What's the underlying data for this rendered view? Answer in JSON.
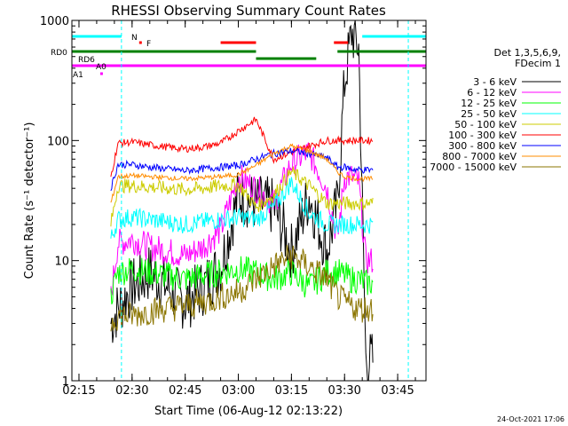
{
  "chart_data": {
    "type": "line",
    "title": "RHESSI Observing Summary Count Rates",
    "xlabel": "Start Time (06-Aug-12 02:13:22)",
    "ylabel": "Count Rate (s⁻¹ detector⁻¹)",
    "y_scale": "log",
    "ylim": [
      1,
      1000
    ],
    "xlim": [
      "02:13",
      "03:53"
    ],
    "x_ticks": [
      "02:15",
      "02:30",
      "02:45",
      "03:00",
      "03:15",
      "03:30",
      "03:45"
    ],
    "y_ticks": [
      "1",
      "10",
      "100",
      "1000"
    ],
    "legend_header": [
      "Det 1,3,5,6,9,",
      "FDecim 1"
    ],
    "legend_position": "right",
    "timestamp": "24-Oct-2021 17:06",
    "data_start": "02:24",
    "data_end": "03:39",
    "series": [
      {
        "name": "3 - 6 keV",
        "color": "#000000",
        "x": [
          "02:24",
          "02:26",
          "02:30",
          "02:35",
          "02:40",
          "02:45",
          "02:50",
          "02:55",
          "03:00",
          "03:05",
          "03:10",
          "03:15",
          "03:20",
          "03:25",
          "03:28",
          "03:30",
          "03:32",
          "03:34",
          "03:36",
          "03:38"
        ],
        "values": [
          3,
          4,
          6,
          8,
          6,
          4.5,
          6,
          9,
          35,
          30,
          28,
          12,
          35,
          12,
          30,
          300,
          800,
          600,
          1.5,
          1.5
        ]
      },
      {
        "name": "6 - 12 keV",
        "color": "#ff00ff",
        "x": [
          "02:24",
          "02:26",
          "02:30",
          "02:35",
          "02:40",
          "02:45",
          "02:50",
          "02:55",
          "03:00",
          "03:05",
          "03:10",
          "03:15",
          "03:20",
          "03:25",
          "03:28",
          "03:30",
          "03:32",
          "03:34",
          "03:36",
          "03:38"
        ],
        "values": [
          5,
          14,
          15,
          13,
          12,
          11,
          13,
          18,
          50,
          40,
          30,
          65,
          80,
          40,
          15,
          50,
          50,
          45,
          10,
          10
        ]
      },
      {
        "name": "12 - 25 keV",
        "color": "#00ff00",
        "x": [
          "02:24",
          "02:26",
          "02:30",
          "02:35",
          "02:40",
          "02:45",
          "02:50",
          "02:55",
          "03:00",
          "03:05",
          "03:10",
          "03:15",
          "03:20",
          "03:25",
          "03:28",
          "03:30",
          "03:32",
          "03:34",
          "03:36",
          "03:38"
        ],
        "values": [
          5,
          8,
          8.5,
          8,
          7.5,
          7,
          7.5,
          8,
          8.5,
          8,
          7,
          8,
          6,
          8,
          8,
          7.5,
          7,
          7,
          6.5,
          6.5
        ]
      },
      {
        "name": "25 - 50 keV",
        "color": "#00ffff",
        "x": [
          "02:24",
          "02:26",
          "02:30",
          "02:35",
          "02:40",
          "02:45",
          "02:50",
          "02:55",
          "03:00",
          "03:05",
          "03:10",
          "03:15",
          "03:20",
          "03:25",
          "03:28",
          "03:30",
          "03:32",
          "03:34",
          "03:36",
          "03:38"
        ],
        "values": [
          15,
          22,
          23,
          22,
          21,
          20,
          21,
          22,
          23,
          22,
          28,
          45,
          25,
          20,
          20,
          20,
          20,
          20,
          20,
          20
        ]
      },
      {
        "name": "50 - 100 keV",
        "color": "#cccc00",
        "x": [
          "02:24",
          "02:26",
          "02:30",
          "02:35",
          "02:40",
          "02:45",
          "02:50",
          "02:55",
          "03:00",
          "03:05",
          "03:10",
          "03:15",
          "03:20",
          "03:25",
          "03:28",
          "03:30",
          "03:32",
          "03:34",
          "03:36",
          "03:38"
        ],
        "values": [
          20,
          42,
          42,
          41,
          40,
          39,
          40,
          42,
          43,
          28,
          35,
          55,
          42,
          30,
          30,
          30,
          30,
          30,
          30,
          30
        ]
      },
      {
        "name": "100 - 300 keV",
        "color": "#ff0000",
        "x": [
          "02:24",
          "02:26",
          "02:30",
          "02:35",
          "02:40",
          "02:45",
          "02:50",
          "02:55",
          "03:00",
          "03:05",
          "03:10",
          "03:15",
          "03:20",
          "03:25",
          "03:28",
          "03:30",
          "03:32",
          "03:34",
          "03:36",
          "03:38"
        ],
        "values": [
          50,
          95,
          97,
          92,
          88,
          85,
          88,
          95,
          120,
          150,
          70,
          80,
          90,
          100,
          100,
          100,
          100,
          100,
          100,
          100
        ]
      },
      {
        "name": "300 - 800 keV",
        "color": "#0000ff",
        "x": [
          "02:24",
          "02:26",
          "02:30",
          "02:35",
          "02:40",
          "02:45",
          "02:50",
          "02:55",
          "03:00",
          "03:05",
          "03:10",
          "03:15",
          "03:20",
          "03:25",
          "03:28",
          "03:30",
          "03:32",
          "03:34",
          "03:36",
          "03:38"
        ],
        "values": [
          40,
          63,
          63,
          60,
          58,
          56,
          58,
          60,
          62,
          70,
          78,
          82,
          78,
          72,
          60,
          60,
          58,
          57,
          57,
          57
        ]
      },
      {
        "name": "800 - 7000 keV",
        "color": "#ff8c00",
        "x": [
          "02:24",
          "02:26",
          "02:30",
          "02:35",
          "02:40",
          "02:45",
          "02:50",
          "02:55",
          "03:00",
          "03:05",
          "03:10",
          "03:15",
          "03:20",
          "03:25",
          "03:28",
          "03:30",
          "03:32",
          "03:34",
          "03:36",
          "03:38"
        ],
        "values": [
          30,
          50,
          51,
          50,
          49,
          48,
          49,
          50,
          52,
          62,
          78,
          90,
          82,
          70,
          55,
          50,
          49,
          48,
          48,
          48
        ]
      },
      {
        "name": "7000 - 15000 keV",
        "color": "#8b7500",
        "x": [
          "02:24",
          "02:26",
          "02:30",
          "02:35",
          "02:40",
          "02:45",
          "02:50",
          "02:55",
          "03:00",
          "03:05",
          "03:10",
          "03:15",
          "03:20",
          "03:25",
          "03:28",
          "03:30",
          "03:32",
          "03:34",
          "03:36",
          "03:38"
        ],
        "values": [
          3,
          3.5,
          3.5,
          3.8,
          4,
          4.2,
          4.5,
          5,
          5.5,
          7,
          9,
          11,
          9,
          7,
          5,
          4.5,
          4.2,
          4,
          4,
          4
        ]
      }
    ],
    "annotation_bars": [
      {
        "label": "N",
        "color": "#00ffff",
        "segments": [
          [
            "02:13",
            "02:27"
          ],
          [
            "03:35",
            "03:53"
          ]
        ],
        "level": 0
      },
      {
        "label": "F",
        "color": "#ff0000",
        "segments": [
          [
            "02:32",
            "02:32"
          ],
          [
            "02:55",
            "03:05"
          ],
          [
            "03:27",
            "03:31"
          ]
        ],
        "level": 1
      },
      {
        "label": "RD0",
        "color": "#008000",
        "segments": [
          [
            "02:13",
            "03:05"
          ],
          [
            "03:28",
            "03:53"
          ]
        ],
        "level": 2
      },
      {
        "label": "RD6",
        "color": "#008000",
        "segments": [
          [
            "03:05",
            "03:22"
          ]
        ],
        "level": 3
      },
      {
        "label": "A0",
        "color": "#ff00ff",
        "segments": [
          [
            "02:13",
            "03:53"
          ]
        ],
        "level": 4
      },
      {
        "label": "A1",
        "color": "#ff00ff",
        "segments": [
          [
            "02:21",
            "02:21"
          ]
        ],
        "level": 5
      }
    ],
    "vlines": [
      {
        "x": "02:27",
        "color": "#00ffff",
        "style": "dashed"
      },
      {
        "x": "03:48",
        "color": "#00ffff",
        "style": "dashed"
      }
    ]
  }
}
